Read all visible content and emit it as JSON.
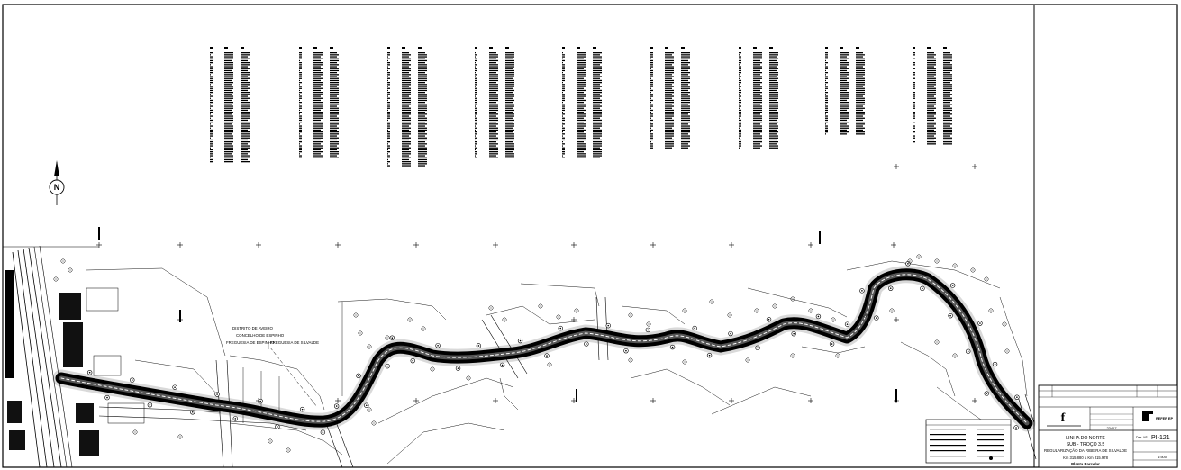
{
  "drawing": {
    "north_label": "N",
    "district_labels": [
      "DISTRITO DE AVEIRO",
      "CONCELHO DE ESPINHO",
      "FREGUESIA DE ESPINHO",
      "FREGUESIA DE SILVALDE"
    ]
  },
  "title_block": {
    "company_name": "REFER EP",
    "project_line1": "LINHA DO NORTE",
    "project_line2": "SUB - TROÇO 3.5",
    "project_line3": "REGULARIZAÇÃO DA RIBEIRA DE SILVALDE",
    "km_range": "Km 315.880 a Km 315.978",
    "sheet_type": "Planta Parcelar",
    "drawing_no_label": "Des. Nº",
    "drawing_no": "PI-121",
    "file_no": "23417",
    "scale": "1:500"
  }
}
